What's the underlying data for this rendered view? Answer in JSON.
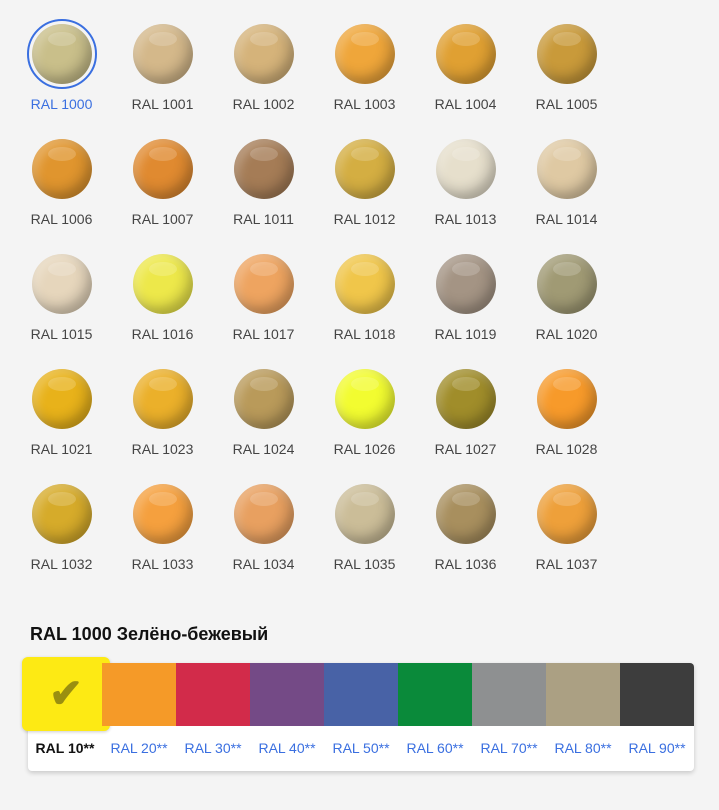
{
  "colors": [
    {
      "label": "RAL 1000",
      "hex": "#c9bf8a",
      "selected": true
    },
    {
      "label": "RAL 1001",
      "hex": "#d4b88a"
    },
    {
      "label": "RAL 1002",
      "hex": "#d5b37a"
    },
    {
      "label": "RAL 1003",
      "hex": "#efa63a"
    },
    {
      "label": "RAL 1004",
      "hex": "#e0a032"
    },
    {
      "label": "RAL 1005",
      "hex": "#c99a3a"
    },
    {
      "label": "RAL 1006",
      "hex": "#e0952e"
    },
    {
      "label": "RAL 1007",
      "hex": "#e08a30"
    },
    {
      "label": "RAL 1011",
      "hex": "#a57c56"
    },
    {
      "label": "RAL 1012",
      "hex": "#d4ae42"
    },
    {
      "label": "RAL 1013",
      "hex": "#e6dfcc"
    },
    {
      "label": "RAL 1014",
      "hex": "#dfc9a3"
    },
    {
      "label": "RAL 1015",
      "hex": "#e6d6bc"
    },
    {
      "label": "RAL 1016",
      "hex": "#ede84a"
    },
    {
      "label": "RAL 1017",
      "hex": "#eea460"
    },
    {
      "label": "RAL 1018",
      "hex": "#f0c64a"
    },
    {
      "label": "RAL 1019",
      "hex": "#a49484"
    },
    {
      "label": "RAL 1020",
      "hex": "#a09a74"
    },
    {
      "label": "RAL 1021",
      "hex": "#e8b21a"
    },
    {
      "label": "RAL 1023",
      "hex": "#ebb02a"
    },
    {
      "label": "RAL 1024",
      "hex": "#b99a5a"
    },
    {
      "label": "RAL 1026",
      "hex": "#f2fc30"
    },
    {
      "label": "RAL 1027",
      "hex": "#a08d2a"
    },
    {
      "label": "RAL 1028",
      "hex": "#f79a2a"
    },
    {
      "label": "RAL 1032",
      "hex": "#d6ab2a"
    },
    {
      "label": "RAL 1033",
      "hex": "#f5a03e"
    },
    {
      "label": "RAL 1034",
      "hex": "#e8a060"
    },
    {
      "label": "RAL 1035",
      "hex": "#cbbd98"
    },
    {
      "label": "RAL 1036",
      "hex": "#a88f5e"
    },
    {
      "label": "RAL 1037",
      "hex": "#eea03a"
    }
  ],
  "selected_title": "RAL 1000 Зелёно-бежевый",
  "palette": [
    {
      "label": "RAL 10**",
      "hex": "#fdea14",
      "selected": true,
      "icon": "check-icon"
    },
    {
      "label": "RAL 20**",
      "hex": "#f59a28"
    },
    {
      "label": "RAL 30**",
      "hex": "#d22b4a"
    },
    {
      "label": "RAL 40**",
      "hex": "#744a86"
    },
    {
      "label": "RAL 50**",
      "hex": "#4862a6"
    },
    {
      "label": "RAL 60**",
      "hex": "#0a8a3a"
    },
    {
      "label": "RAL 70**",
      "hex": "#8e9091"
    },
    {
      "label": "RAL 80**",
      "hex": "#aba083"
    },
    {
      "label": "RAL 90**",
      "hex": "#3d3d3d"
    }
  ],
  "check_glyph": "✔"
}
